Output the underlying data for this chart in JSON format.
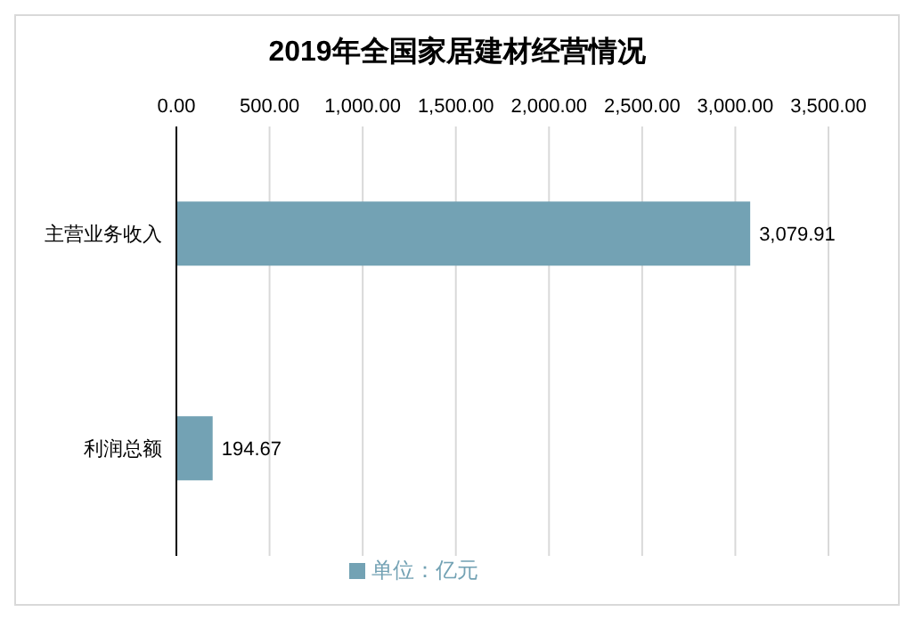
{
  "chart_data": {
    "type": "bar",
    "orientation": "horizontal",
    "title": "2019年全国家居建材经营情况",
    "categories": [
      "主营业务收入",
      "利润总额"
    ],
    "series": [
      {
        "name": "单位：亿元",
        "color": "#73a2b4",
        "values": [
          3079.91,
          194.67
        ],
        "value_labels": [
          "3,079.91",
          "194.67"
        ]
      }
    ],
    "xlim": [
      0,
      3500
    ],
    "xticks": [
      {
        "value": 0,
        "label": "0.00"
      },
      {
        "value": 500,
        "label": "500.00"
      },
      {
        "value": 1000,
        "label": "1,000.00"
      },
      {
        "value": 1500,
        "label": "1,500.00"
      },
      {
        "value": 2000,
        "label": "2,000.00"
      },
      {
        "value": 2500,
        "label": "2,500.00"
      },
      {
        "value": 3000,
        "label": "3,000.00"
      },
      {
        "value": 3500,
        "label": "3,500.00"
      }
    ],
    "grid": "x",
    "legend": "bottom"
  }
}
